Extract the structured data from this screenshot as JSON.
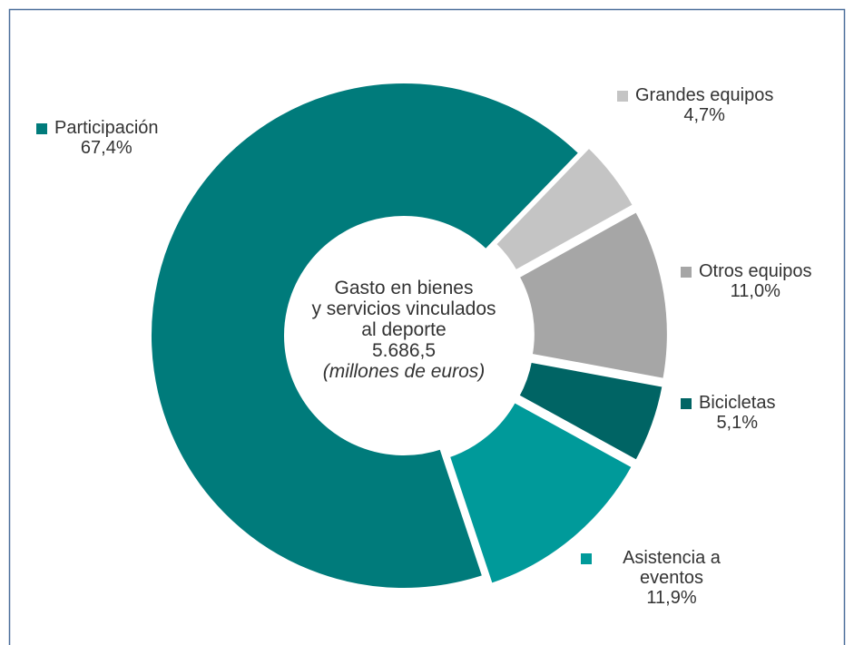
{
  "chart_data": {
    "type": "donut",
    "categories": [
      "Participación",
      "Grandes equipos",
      "Otros equipos",
      "Bicicletas",
      "Asistencia a eventos"
    ],
    "values": [
      67.4,
      4.7,
      11.0,
      5.1,
      11.9
    ],
    "value_labels": [
      "67,4%",
      "4,7%",
      "11,0%",
      "5,1%",
      "11,9%"
    ],
    "colors": [
      "#007b7b",
      "#c4c4c4",
      "#a6a6a6",
      "#006464",
      "#009a9a"
    ],
    "center_text": [
      "Gasto en bienes",
      "y servicios vinculados",
      "al deporte",
      "5.686,5"
    ],
    "center_note": "(millones de euros)"
  }
}
